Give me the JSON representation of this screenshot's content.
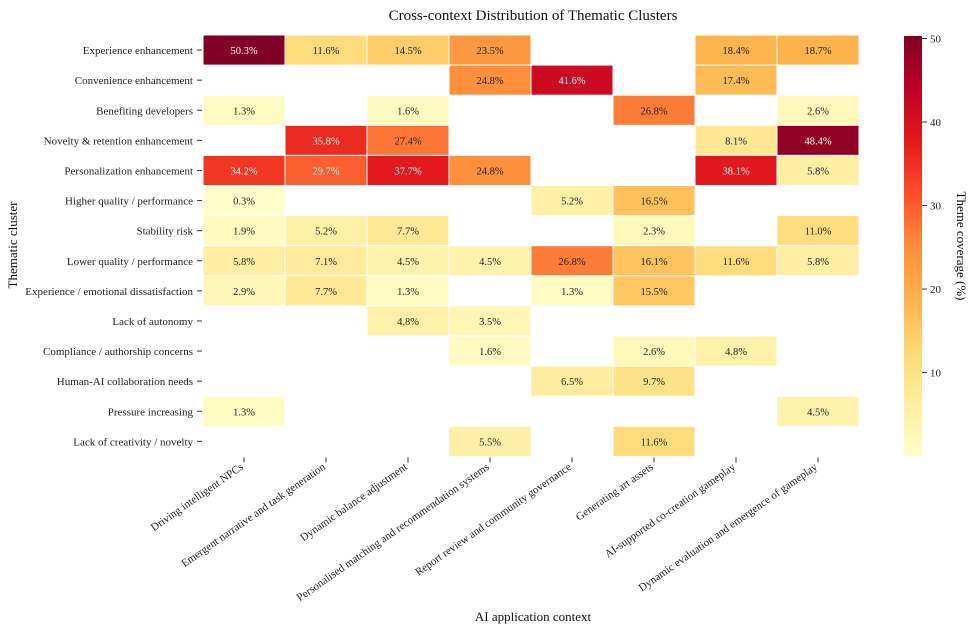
{
  "chart_data": {
    "type": "heatmap",
    "title": "Cross-context Distribution of Thematic Clusters",
    "xlabel": "AI application context",
    "ylabel": "Thematic cluster",
    "colorbar_label": "Theme coverage (%)",
    "colorbar_ticks": [
      10,
      20,
      30,
      40,
      50
    ],
    "vmin": 0,
    "vmax": 50.3,
    "colormap": "YlOrRd",
    "value_suffix": "%",
    "columns": [
      "Driving intelligent NPCs",
      "Emergent narrative and task generation",
      "Dynamic balance adjustment",
      "Personalised matching and recommendation systems",
      "Report review and community governance",
      "Generating art assets",
      "AI-supported co-creation gameplay",
      "Dynamic evaluation and emergence of gameplay"
    ],
    "rows": [
      "Experience enhancement",
      "Convenience enhancement",
      "Benefiting developers",
      "Novelty & retention enhancement",
      "Personalization enhancement",
      "Higher quality / performance",
      "Stability risk",
      "Lower quality / performance",
      "Experience / emotional dissatisfaction",
      "Lack of autonomy",
      "Compliance / authorship concerns",
      "Human-AI collaboration needs",
      "Pressure increasing",
      "Lack of creativity / novelty"
    ],
    "values": [
      [
        50.3,
        11.6,
        14.5,
        23.5,
        null,
        null,
        18.4,
        18.7
      ],
      [
        null,
        null,
        null,
        24.8,
        41.6,
        null,
        17.4,
        null
      ],
      [
        1.3,
        null,
        1.6,
        null,
        null,
        26.8,
        null,
        2.6
      ],
      [
        null,
        35.8,
        27.4,
        null,
        null,
        null,
        8.1,
        48.4
      ],
      [
        34.2,
        29.7,
        37.7,
        24.8,
        null,
        null,
        38.1,
        5.8
      ],
      [
        0.3,
        null,
        null,
        null,
        5.2,
        16.5,
        null,
        null
      ],
      [
        1.9,
        5.2,
        7.7,
        null,
        null,
        2.3,
        null,
        11.0
      ],
      [
        5.8,
        7.1,
        4.5,
        4.5,
        26.8,
        16.1,
        11.6,
        5.8
      ],
      [
        2.9,
        7.7,
        1.3,
        null,
        1.3,
        15.5,
        null,
        null
      ],
      [
        null,
        null,
        4.8,
        3.5,
        null,
        null,
        null,
        null
      ],
      [
        null,
        null,
        null,
        1.6,
        null,
        2.6,
        4.8,
        null
      ],
      [
        null,
        null,
        null,
        null,
        6.5,
        9.7,
        null,
        null
      ],
      [
        1.3,
        null,
        null,
        null,
        null,
        null,
        null,
        4.5
      ],
      [
        null,
        null,
        null,
        5.5,
        null,
        11.6,
        null,
        null
      ]
    ]
  }
}
